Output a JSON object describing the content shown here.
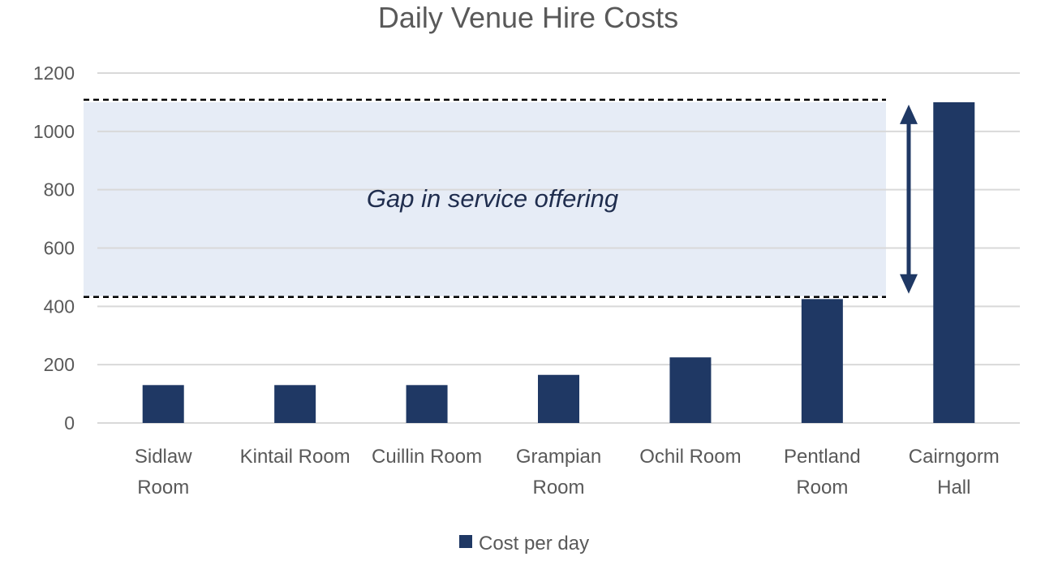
{
  "chart_data": {
    "type": "bar",
    "title": "Daily Venue Hire Costs",
    "categories": [
      [
        "Sidlaw",
        "Room"
      ],
      [
        "Kintail Room"
      ],
      [
        "Cuillin Room"
      ],
      [
        "Grampian",
        "Room"
      ],
      [
        "Ochil Room"
      ],
      [
        "Pentland",
        "Room"
      ],
      [
        "Cairngorm",
        "Hall"
      ]
    ],
    "series": [
      {
        "name": "Cost per day",
        "values": [
          130,
          130,
          130,
          165,
          225,
          425,
          1100
        ],
        "color": "#1f3864"
      }
    ],
    "ylim": [
      0,
      1200
    ],
    "yticks": [
      "0",
      "200",
      "400",
      "600",
      "800",
      "1000",
      "1200"
    ],
    "grid": true,
    "legend": "bottom",
    "annotation": {
      "text": "Gap in service offering",
      "range": [
        435,
        1100
      ],
      "fill": "#e6ecf6"
    }
  }
}
